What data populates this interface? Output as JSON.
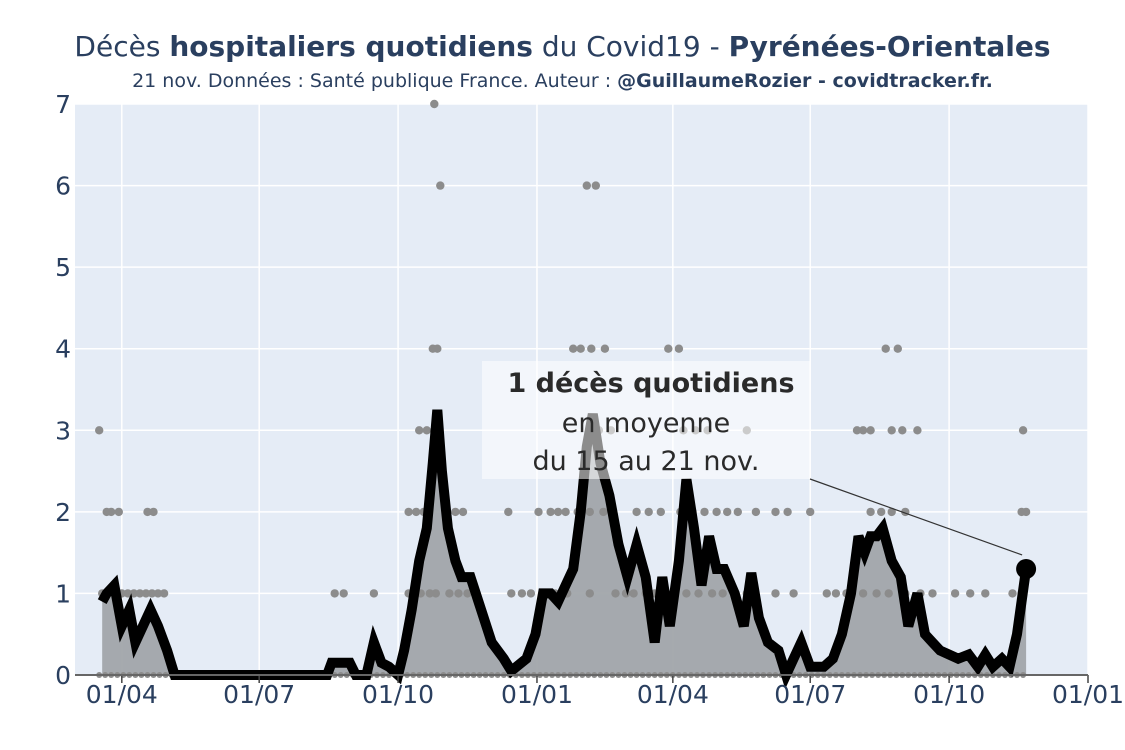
{
  "header": {
    "title_prefix": "Décès ",
    "title_bold1": "hospitaliers quotidiens",
    "title_mid": " du Covid19 - ",
    "title_bold2": "Pyrénées-Orientales",
    "subtitle_text": "21 nov. Données : Santé publique France. Auteur : ",
    "subtitle_bold": "@GuillaumeRozier - covidtracker.fr."
  },
  "colors": {
    "plot_bg": "#e5ecf6",
    "grid": "#ffffff",
    "area": "#a1a5aa",
    "line": "#000000",
    "dots": "#8c8c8c",
    "text": "#2a3f5f"
  },
  "chart_data": {
    "type": "area",
    "x_ticks": [
      "01/04",
      "01/07",
      "01/10",
      "01/01",
      "01/04",
      "01/07",
      "01/10",
      "01/01"
    ],
    "y_ticks": [
      "0",
      "1",
      "2",
      "3",
      "4",
      "5",
      "6",
      "7"
    ],
    "ylim": [
      0,
      7
    ],
    "x_range": [
      "2020-03-01",
      "2022-01-01"
    ],
    "grid": true,
    "series": [
      {
        "kind": "line-area",
        "points": [
          [
            "2020-03-19",
            0.9
          ],
          [
            "2020-03-22",
            1.0
          ],
          [
            "2020-03-27",
            1.1
          ],
          [
            "2020-04-01",
            0.6
          ],
          [
            "2020-04-06",
            0.8
          ],
          [
            "2020-04-10",
            0.4
          ],
          [
            "2020-04-15",
            0.6
          ],
          [
            "2020-04-20",
            0.8
          ],
          [
            "2020-04-25",
            0.6
          ],
          [
            "2020-05-01",
            0.3
          ],
          [
            "2020-05-06",
            0.0
          ],
          [
            "2020-08-15",
            0.0
          ],
          [
            "2020-08-18",
            0.15
          ],
          [
            "2020-08-30",
            0.15
          ],
          [
            "2020-09-03",
            0.0
          ],
          [
            "2020-09-10",
            0.0
          ],
          [
            "2020-09-15",
            0.4
          ],
          [
            "2020-09-20",
            0.15
          ],
          [
            "2020-09-25",
            0.1
          ],
          [
            "2020-10-01",
            0.0
          ],
          [
            "2020-10-05",
            0.3
          ],
          [
            "2020-10-10",
            0.8
          ],
          [
            "2020-10-15",
            1.4
          ],
          [
            "2020-10-20",
            1.8
          ],
          [
            "2020-10-24",
            2.6
          ],
          [
            "2020-10-27",
            3.25
          ],
          [
            "2020-10-30",
            2.5
          ],
          [
            "2020-11-03",
            1.8
          ],
          [
            "2020-11-08",
            1.4
          ],
          [
            "2020-11-12",
            1.2
          ],
          [
            "2020-11-18",
            1.2
          ],
          [
            "2020-11-25",
            0.8
          ],
          [
            "2020-12-02",
            0.4
          ],
          [
            "2020-12-10",
            0.2
          ],
          [
            "2020-12-15",
            0.05
          ],
          [
            "2020-12-25",
            0.2
          ],
          [
            "2020-12-31",
            0.5
          ],
          [
            "2021-01-05",
            1.0
          ],
          [
            "2021-01-10",
            1.0
          ],
          [
            "2021-01-15",
            0.9
          ],
          [
            "2021-01-20",
            1.1
          ],
          [
            "2021-01-25",
            1.3
          ],
          [
            "2021-01-30",
            2.0
          ],
          [
            "2021-02-03",
            2.8
          ],
          [
            "2021-02-07",
            3.2
          ],
          [
            "2021-02-12",
            2.6
          ],
          [
            "2021-02-18",
            2.2
          ],
          [
            "2021-02-24",
            1.6
          ],
          [
            "2021-03-02",
            1.2
          ],
          [
            "2021-03-08",
            1.6
          ],
          [
            "2021-03-14",
            1.2
          ],
          [
            "2021-03-20",
            0.4
          ],
          [
            "2021-03-25",
            1.2
          ],
          [
            "2021-03-30",
            0.6
          ],
          [
            "2021-04-05",
            1.4
          ],
          [
            "2021-04-10",
            2.4
          ],
          [
            "2021-04-15",
            1.8
          ],
          [
            "2021-04-20",
            1.1
          ],
          [
            "2021-04-25",
            1.7
          ],
          [
            "2021-04-30",
            1.3
          ],
          [
            "2021-05-05",
            1.3
          ],
          [
            "2021-05-12",
            1.0
          ],
          [
            "2021-05-18",
            0.6
          ],
          [
            "2021-05-23",
            1.25
          ],
          [
            "2021-05-28",
            0.7
          ],
          [
            "2021-06-03",
            0.4
          ],
          [
            "2021-06-10",
            0.3
          ],
          [
            "2021-06-15",
            0.0
          ],
          [
            "2021-06-20",
            0.2
          ],
          [
            "2021-06-25",
            0.4
          ],
          [
            "2021-07-01",
            0.1
          ],
          [
            "2021-07-10",
            0.1
          ],
          [
            "2021-07-16",
            0.2
          ],
          [
            "2021-07-22",
            0.5
          ],
          [
            "2021-07-28",
            1.0
          ],
          [
            "2021-08-02",
            1.7
          ],
          [
            "2021-08-06",
            1.5
          ],
          [
            "2021-08-10",
            1.7
          ],
          [
            "2021-08-14",
            1.7
          ],
          [
            "2021-08-18",
            1.8
          ],
          [
            "2021-08-24",
            1.4
          ],
          [
            "2021-08-30",
            1.2
          ],
          [
            "2021-09-04",
            0.6
          ],
          [
            "2021-09-10",
            1.0
          ],
          [
            "2021-09-15",
            0.5
          ],
          [
            "2021-09-20",
            0.4
          ],
          [
            "2021-09-25",
            0.3
          ],
          [
            "2021-10-01",
            0.25
          ],
          [
            "2021-10-07",
            0.2
          ],
          [
            "2021-10-14",
            0.25
          ],
          [
            "2021-10-20",
            0.1
          ],
          [
            "2021-10-25",
            0.25
          ],
          [
            "2021-10-30",
            0.1
          ],
          [
            "2021-11-05",
            0.2
          ],
          [
            "2021-11-10",
            0.1
          ],
          [
            "2021-11-15",
            0.5
          ],
          [
            "2021-11-21",
            1.3
          ]
        ]
      },
      {
        "kind": "scatter",
        "points": [
          [
            "2020-03-17",
            3
          ],
          [
            "2020-03-22",
            2
          ],
          [
            "2020-03-25",
            2
          ],
          [
            "2020-03-30",
            2
          ],
          [
            "2020-04-18",
            2
          ],
          [
            "2020-04-22",
            2
          ],
          [
            "2020-03-19",
            1
          ],
          [
            "2020-03-23",
            1
          ],
          [
            "2020-03-27",
            1
          ],
          [
            "2020-04-01",
            1
          ],
          [
            "2020-04-05",
            1
          ],
          [
            "2020-04-09",
            1
          ],
          [
            "2020-04-13",
            1
          ],
          [
            "2020-04-17",
            1
          ],
          [
            "2020-04-21",
            1
          ],
          [
            "2020-04-25",
            1
          ],
          [
            "2020-04-29",
            1
          ],
          [
            "2020-08-20",
            1
          ],
          [
            "2020-08-26",
            1
          ],
          [
            "2020-09-15",
            1
          ],
          [
            "2020-10-08",
            1
          ],
          [
            "2020-10-12",
            1
          ],
          [
            "2020-10-16",
            1
          ],
          [
            "2020-10-22",
            1
          ],
          [
            "2020-10-26",
            1
          ],
          [
            "2020-11-04",
            1
          ],
          [
            "2020-11-10",
            1
          ],
          [
            "2020-11-16",
            1
          ],
          [
            "2020-11-22",
            1
          ],
          [
            "2020-10-08",
            2
          ],
          [
            "2020-10-13",
            2
          ],
          [
            "2020-10-18",
            2
          ],
          [
            "2020-11-02",
            2
          ],
          [
            "2020-11-08",
            2
          ],
          [
            "2020-11-13",
            2
          ],
          [
            "2020-12-13",
            2
          ],
          [
            "2020-10-15",
            3
          ],
          [
            "2020-10-20",
            3
          ],
          [
            "2020-10-24",
            4
          ],
          [
            "2020-10-27",
            4
          ],
          [
            "2020-10-29",
            6
          ],
          [
            "2020-10-25",
            7
          ],
          [
            "2020-12-15",
            1
          ],
          [
            "2020-12-22",
            1
          ],
          [
            "2020-12-28",
            1
          ],
          [
            "2021-01-05",
            1
          ],
          [
            "2021-01-09",
            1
          ],
          [
            "2021-01-13",
            1
          ],
          [
            "2021-01-17",
            1
          ],
          [
            "2021-01-21",
            1
          ],
          [
            "2021-02-05",
            1
          ],
          [
            "2021-02-22",
            1
          ],
          [
            "2021-03-01",
            1
          ],
          [
            "2021-03-06",
            1
          ],
          [
            "2021-03-14",
            1
          ],
          [
            "2021-03-20",
            1
          ],
          [
            "2021-04-01",
            1
          ],
          [
            "2021-04-10",
            1
          ],
          [
            "2021-04-18",
            1
          ],
          [
            "2021-04-27",
            1
          ],
          [
            "2021-05-04",
            1
          ],
          [
            "2021-05-12",
            1
          ],
          [
            "2021-05-20",
            1
          ],
          [
            "2021-06-08",
            1
          ],
          [
            "2021-06-20",
            1
          ],
          [
            "2021-07-12",
            1
          ],
          [
            "2021-07-18",
            1
          ],
          [
            "2021-07-25",
            1
          ],
          [
            "2021-08-05",
            1
          ],
          [
            "2021-08-14",
            1
          ],
          [
            "2021-08-22",
            1
          ],
          [
            "2021-09-02",
            1
          ],
          [
            "2021-09-12",
            1
          ],
          [
            "2021-09-20",
            1
          ],
          [
            "2021-10-05",
            1
          ],
          [
            "2021-10-15",
            1
          ],
          [
            "2021-10-25",
            1
          ],
          [
            "2021-11-12",
            1
          ],
          [
            "2021-11-18",
            1
          ],
          [
            "2021-01-02",
            2
          ],
          [
            "2021-01-10",
            2
          ],
          [
            "2021-01-15",
            2
          ],
          [
            "2021-01-20",
            2
          ],
          [
            "2021-01-28",
            2
          ],
          [
            "2021-02-05",
            2
          ],
          [
            "2021-02-14",
            2
          ],
          [
            "2021-02-20",
            2
          ],
          [
            "2021-03-08",
            2
          ],
          [
            "2021-03-16",
            2
          ],
          [
            "2021-03-24",
            2
          ],
          [
            "2021-04-06",
            2
          ],
          [
            "2021-04-14",
            2
          ],
          [
            "2021-04-22",
            2
          ],
          [
            "2021-04-30",
            2
          ],
          [
            "2021-05-07",
            2
          ],
          [
            "2021-05-14",
            2
          ],
          [
            "2021-05-26",
            2
          ],
          [
            "2021-06-08",
            2
          ],
          [
            "2021-06-16",
            2
          ],
          [
            "2021-07-01",
            2
          ],
          [
            "2021-08-10",
            2
          ],
          [
            "2021-08-17",
            2
          ],
          [
            "2021-08-24",
            2
          ],
          [
            "2021-09-02",
            2
          ],
          [
            "2021-11-18",
            2
          ],
          [
            "2021-11-21",
            2
          ],
          [
            "2021-02-07",
            3
          ],
          [
            "2021-02-11",
            3
          ],
          [
            "2021-02-19",
            3
          ],
          [
            "2021-04-08",
            3
          ],
          [
            "2021-04-16",
            3
          ],
          [
            "2021-04-24",
            3
          ],
          [
            "2021-05-20",
            3
          ],
          [
            "2021-08-01",
            3
          ],
          [
            "2021-08-05",
            3
          ],
          [
            "2021-08-10",
            3
          ],
          [
            "2021-08-24",
            3
          ],
          [
            "2021-08-31",
            3
          ],
          [
            "2021-09-10",
            3
          ],
          [
            "2021-11-19",
            3
          ],
          [
            "2021-01-25",
            4
          ],
          [
            "2021-01-30",
            4
          ],
          [
            "2021-02-06",
            4
          ],
          [
            "2021-02-15",
            4
          ],
          [
            "2021-03-29",
            4
          ],
          [
            "2021-04-05",
            4
          ],
          [
            "2021-08-20",
            4
          ],
          [
            "2021-08-28",
            4
          ],
          [
            "2021-02-03",
            6
          ],
          [
            "2021-02-09",
            6
          ]
        ]
      }
    ],
    "annotation": {
      "bold_text": "1 décès quotidiens",
      "line2": "en moyenne",
      "line3": "du 15 au 21 nov.",
      "target": [
        "2021-11-21",
        1.3
      ]
    }
  }
}
